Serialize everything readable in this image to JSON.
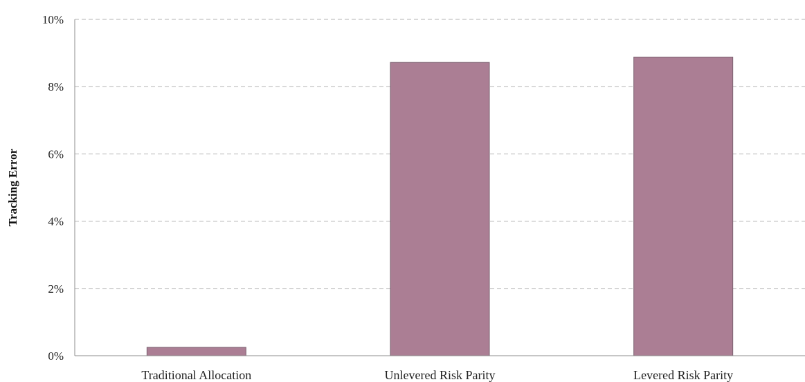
{
  "chart_data": {
    "type": "bar",
    "title": "",
    "xlabel": "",
    "ylabel": "Tracking Error",
    "ylim": [
      0,
      10
    ],
    "yticks": [
      "0%",
      "2%",
      "4%",
      "6%",
      "8%",
      "10%"
    ],
    "grid": true,
    "categories": [
      "Traditional Allocation",
      "Unlevered Risk Parity",
      "Levered Risk Parity"
    ],
    "values": [
      0.25,
      8.72,
      8.88
    ],
    "colors": {
      "bar": "#ab7e94"
    }
  }
}
